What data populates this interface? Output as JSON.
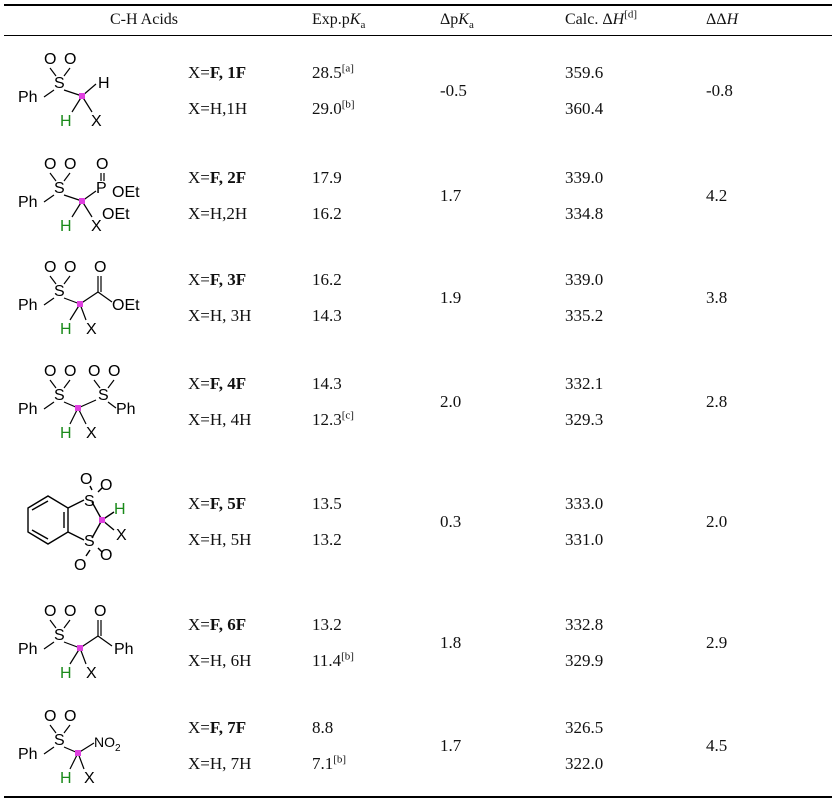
{
  "header": {
    "col_acid": "C-H Acids",
    "col_exp_pka": "Exp.pKa",
    "col_dpka": "ΔpKa",
    "col_calc_dh": "Calc. ΔH",
    "col_calc_dh_note": "[d]",
    "col_ddh": "ΔΔH"
  },
  "rows": [
    {
      "f_label": "X=F, 1F",
      "h_label": "X=H,1H",
      "pka_f": "28.5",
      "pka_f_note": "[a]",
      "pka_h": "29.0",
      "pka_h_note": "[b]",
      "dpka": "-0.5",
      "dh_f": "359.6",
      "dh_h": "360.4",
      "ddh": "-0.8"
    },
    {
      "f_label": "X=F, 2F",
      "h_label": "X=H,2H",
      "pka_f": "17.9",
      "pka_f_note": "",
      "pka_h": "16.2",
      "pka_h_note": "",
      "dpka": "1.7",
      "dh_f": "339.0",
      "dh_h": "334.8",
      "ddh": "4.2"
    },
    {
      "f_label": "X=F, 3F",
      "h_label": "X=H, 3H",
      "pka_f": "16.2",
      "pka_f_note": "",
      "pka_h": "14.3",
      "pka_h_note": "",
      "dpka": "1.9",
      "dh_f": "339.0",
      "dh_h": "335.2",
      "ddh": "3.8"
    },
    {
      "f_label": "X=F, 4F",
      "h_label": "X=H, 4H",
      "pka_f": "14.3",
      "pka_f_note": "",
      "pka_h": "12.3",
      "pka_h_note": "[c]",
      "dpka": "2.0",
      "dh_f": "332.1",
      "dh_h": "329.3",
      "ddh": "2.8"
    },
    {
      "f_label": "X=F, 5F",
      "h_label": "X=H, 5H",
      "pka_f": "13.5",
      "pka_f_note": "",
      "pka_h": "13.2",
      "pka_h_note": "",
      "dpka": "0.3",
      "dh_f": "333.0",
      "dh_h": "331.0",
      "ddh": "2.0"
    },
    {
      "f_label": "X=F, 6F",
      "h_label": "X=H, 6H",
      "pka_f": "13.2",
      "pka_f_note": "",
      "pka_h": "11.4",
      "pka_h_note": "[b]",
      "dpka": "1.8",
      "dh_f": "332.8",
      "dh_h": "329.9",
      "ddh": "2.9"
    },
    {
      "f_label": "X=F, 7F",
      "h_label": "X=H, 7H",
      "pka_f": "8.8",
      "pka_f_note": "",
      "pka_h": "7.1",
      "pka_h_note": "[b]",
      "dpka": "1.7",
      "dh_f": "326.5",
      "dh_h": "322.0",
      "ddh": "4.5"
    }
  ],
  "structures": {
    "atoms": {
      "ph": "Ph",
      "o": "O",
      "s": "S",
      "h": "H",
      "x": "X",
      "oet": "OEt",
      "p": "P",
      "no2": "NO2"
    },
    "colors": {
      "h_atom": "#1a8a1a",
      "carbon_marker": "#e040e0",
      "bond": "#000000"
    }
  }
}
